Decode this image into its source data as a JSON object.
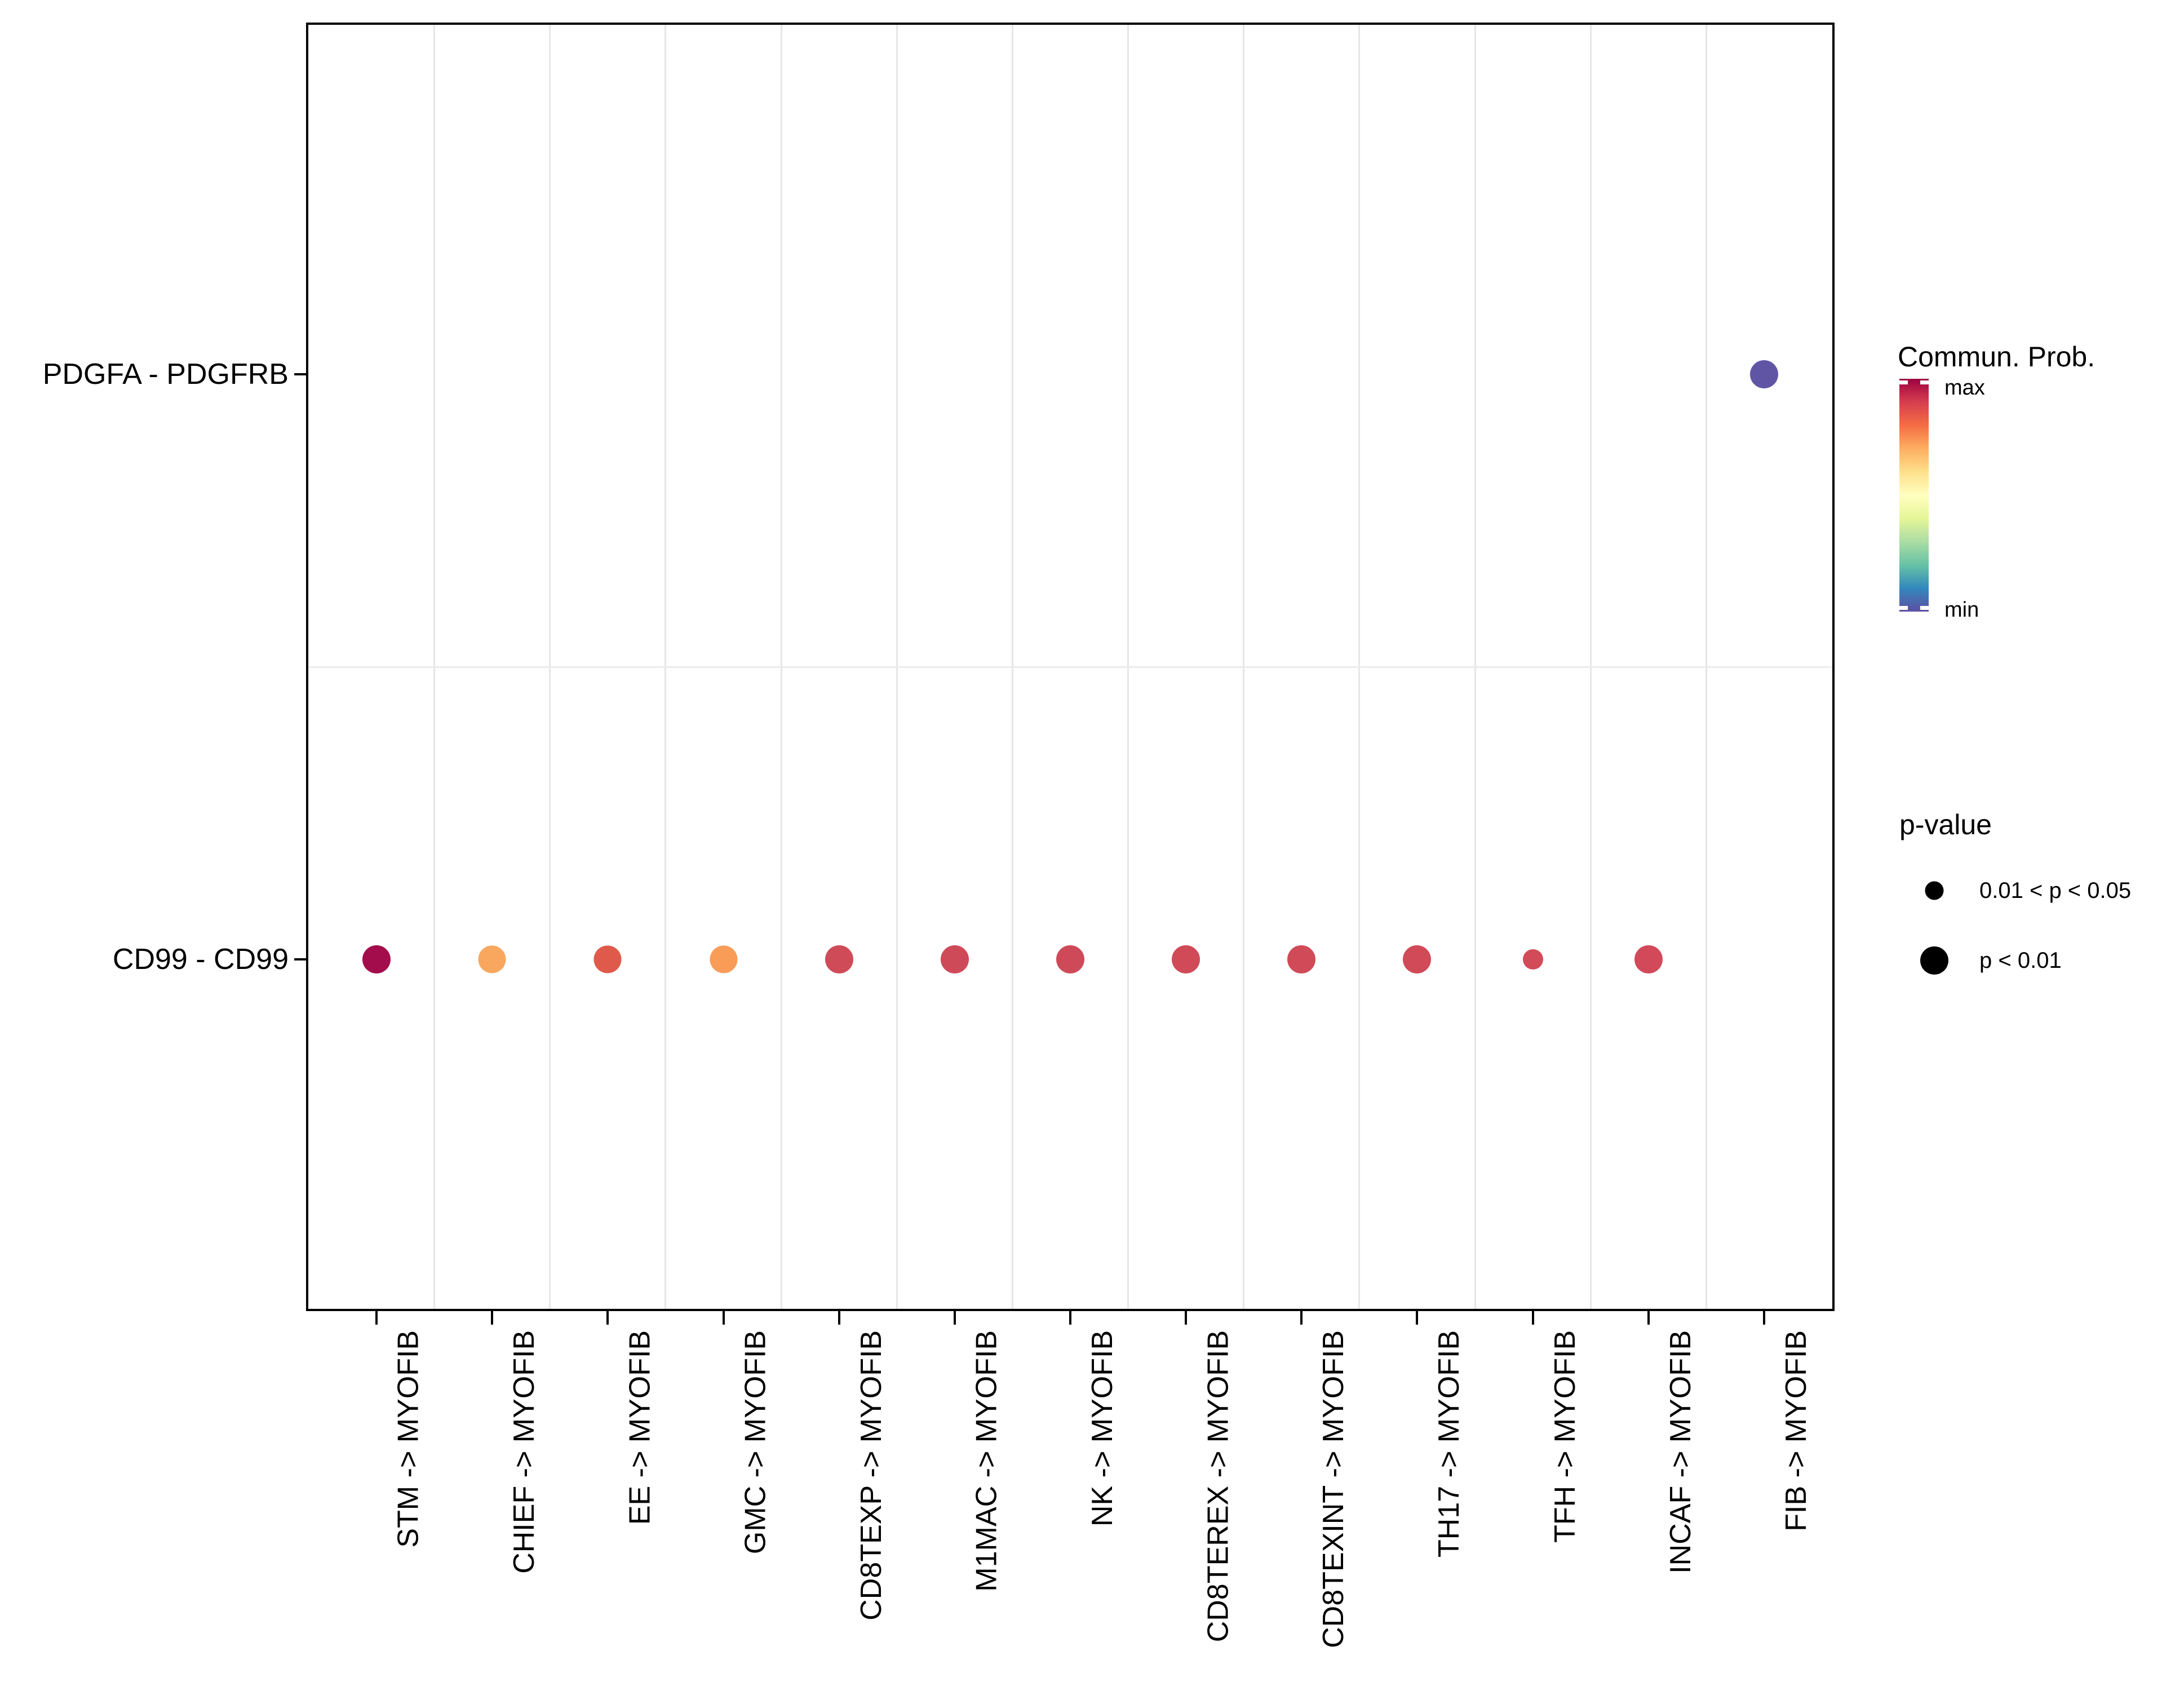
{
  "figure": {
    "background": "#FFFFFF",
    "panel_border_color": "#000000",
    "grid_color_vertical": "#E6E6E6",
    "grid_color_horizontal": "#ECECEC",
    "text_color": "#000000"
  },
  "chart_data": {
    "type": "scatter",
    "subtype": "bubble-dotplot (CellChat communication probability)",
    "title": "",
    "xlabel": "",
    "ylabel": "",
    "grid": "light vertical separators between columns, one horizontal separator between rows",
    "x_categories": [
      "STM -> MYOFIB",
      "CHIEF -> MYOFIB",
      "EE -> MYOFIB",
      "GMC -> MYOFIB",
      "CD8TEXP -> MYOFIB",
      "M1MAC -> MYOFIB",
      "NK -> MYOFIB",
      "CD8TEREX -> MYOFIB",
      "CD8TEXINT -> MYOFIB",
      "TH17 -> MYOFIB",
      "TFH -> MYOFIB",
      "INCAF -> MYOFIB",
      "FIB -> MYOFIB"
    ],
    "y_categories": [
      "CD99 - CD99",
      "PDGFA - PDGFRB"
    ],
    "points": [
      {
        "xi": 0,
        "yi": 0,
        "x": "STM -> MYOFIB",
        "y": "CD99 - CD99",
        "color": "#A30D4C",
        "commun_prob_norm": 0.98,
        "p_value": "p < 0.01",
        "diameter": 50
      },
      {
        "xi": 1,
        "yi": 0,
        "x": "CHIEF -> MYOFIB",
        "y": "CD99 - CD99",
        "color": "#F9A75F",
        "commun_prob_norm": 0.7,
        "p_value": "p < 0.01",
        "diameter": 49
      },
      {
        "xi": 2,
        "yi": 0,
        "x": "EE -> MYOFIB",
        "y": "CD99 - CD99",
        "color": "#DF5A4A",
        "commun_prob_norm": 0.79,
        "p_value": "p < 0.01",
        "diameter": 49
      },
      {
        "xi": 3,
        "yi": 0,
        "x": "GMC -> MYOFIB",
        "y": "CD99 - CD99",
        "color": "#F89C58",
        "commun_prob_norm": 0.71,
        "p_value": "p < 0.01",
        "diameter": 49
      },
      {
        "xi": 4,
        "yi": 0,
        "x": "CD8TEXP -> MYOFIB",
        "y": "CD99 - CD99",
        "color": "#D04B58",
        "commun_prob_norm": 0.85,
        "p_value": "p < 0.01",
        "diameter": 50
      },
      {
        "xi": 5,
        "yi": 0,
        "x": "M1MAC -> MYOFIB",
        "y": "CD99 - CD99",
        "color": "#CF4A59",
        "commun_prob_norm": 0.85,
        "p_value": "p < 0.01",
        "diameter": 50
      },
      {
        "xi": 6,
        "yi": 0,
        "x": "NK -> MYOFIB",
        "y": "CD99 - CD99",
        "color": "#CF4A59",
        "commun_prob_norm": 0.85,
        "p_value": "p < 0.01",
        "diameter": 50
      },
      {
        "xi": 7,
        "yi": 0,
        "x": "CD8TEREX -> MYOFIB",
        "y": "CD99 - CD99",
        "color": "#D04A58",
        "commun_prob_norm": 0.85,
        "p_value": "p < 0.01",
        "diameter": 50
      },
      {
        "xi": 8,
        "yi": 0,
        "x": "CD8TEXINT -> MYOFIB",
        "y": "CD99 - CD99",
        "color": "#D04A58",
        "commun_prob_norm": 0.85,
        "p_value": "p < 0.01",
        "diameter": 50
      },
      {
        "xi": 9,
        "yi": 0,
        "x": "TH17 -> MYOFIB",
        "y": "CD99 - CD99",
        "color": "#D04A58",
        "commun_prob_norm": 0.85,
        "p_value": "p < 0.01",
        "diameter": 50
      },
      {
        "xi": 10,
        "yi": 0,
        "x": "TFH -> MYOFIB",
        "y": "CD99 - CD99",
        "color": "#D14B58",
        "commun_prob_norm": 0.85,
        "p_value": "0.01 < p < 0.05",
        "diameter": 36
      },
      {
        "xi": 11,
        "yi": 0,
        "x": "INCAF -> MYOFIB",
        "y": "CD99 - CD99",
        "color": "#D2495A",
        "commun_prob_norm": 0.85,
        "p_value": "p < 0.01",
        "diameter": 50
      },
      {
        "xi": 12,
        "yi": 1,
        "x": "FIB -> MYOFIB",
        "y": "PDGFA - PDGFRB",
        "color": "#6055A5",
        "commun_prob_norm": 0.03,
        "p_value": "p < 0.01",
        "diameter": 50
      }
    ],
    "legend_position": "right"
  },
  "legend": {
    "colorbar_title": "Commun. Prob.",
    "max_label": "max",
    "min_label": "min",
    "spectral_stops_top_to_bottom": [
      "#9E0142",
      "#D53E4F",
      "#F46D43",
      "#FDAE61",
      "#FEE08B",
      "#FFFFBF",
      "#E6F598",
      "#ABDDA4",
      "#66C2A5",
      "#3288BD",
      "#5E4FA2"
    ],
    "pvalue_title": "p-value",
    "pvalue_items": [
      {
        "label": "0.01 < p < 0.05",
        "diameter": 33
      },
      {
        "label": "p < 0.01",
        "diameter": 50
      }
    ]
  }
}
